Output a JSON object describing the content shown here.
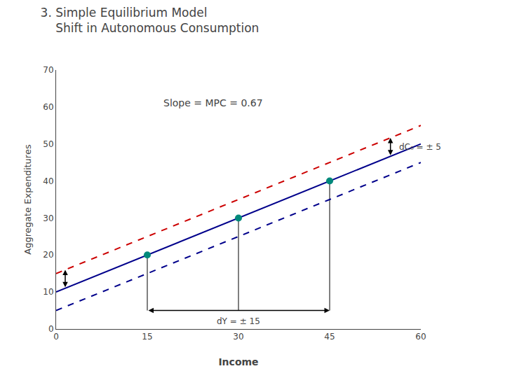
{
  "chart_data": {
    "type": "line",
    "title": "3. Simple Equilibrium Model",
    "subtitle": "    Shift in Autonomous Consumption",
    "x_label": "Income",
    "y_label": "Aggregate Expenditures",
    "xlim": [
      0,
      60
    ],
    "ylim": [
      0,
      70
    ],
    "xticks": [
      0,
      15,
      30,
      45,
      60
    ],
    "yticks": [
      0,
      10,
      20,
      30,
      40,
      50,
      60,
      70
    ],
    "grid": false,
    "series": [
      {
        "x": [
          0,
          60
        ],
        "values": [
          15,
          55.002
        ],
        "color": "#CC0000",
        "line_style": "dashed"
      },
      {
        "x": [
          0,
          60
        ],
        "values": [
          10,
          50.002
        ],
        "color": "#00008B",
        "line_style": "solid"
      },
      {
        "x": [
          0,
          60
        ],
        "values": [
          5,
          45.002
        ],
        "color": "#00008B",
        "line_style": "dashed"
      },
      {
        "type": "scatter",
        "x": [
          15,
          30,
          45
        ],
        "values": [
          20.0005,
          30.001,
          40.0015
        ],
        "color": "#00897B",
        "marker": "circle"
      }
    ],
    "arrows": [
      {
        "x": [
          15,
          45
        ],
        "y": [
          5,
          5
        ],
        "label": "dY = ± 15"
      },
      {
        "x": [
          1.5,
          1.5
        ],
        "y": [
          11.00005,
          16.00005
        ]
      },
      {
        "x": [
          55,
          55
        ],
        "y": [
          46.6685,
          51.6685
        ],
        "label": "dC₀ = ± 5"
      }
    ],
    "annotations": [
      "Slope = MPC = 0.67"
    ]
  }
}
